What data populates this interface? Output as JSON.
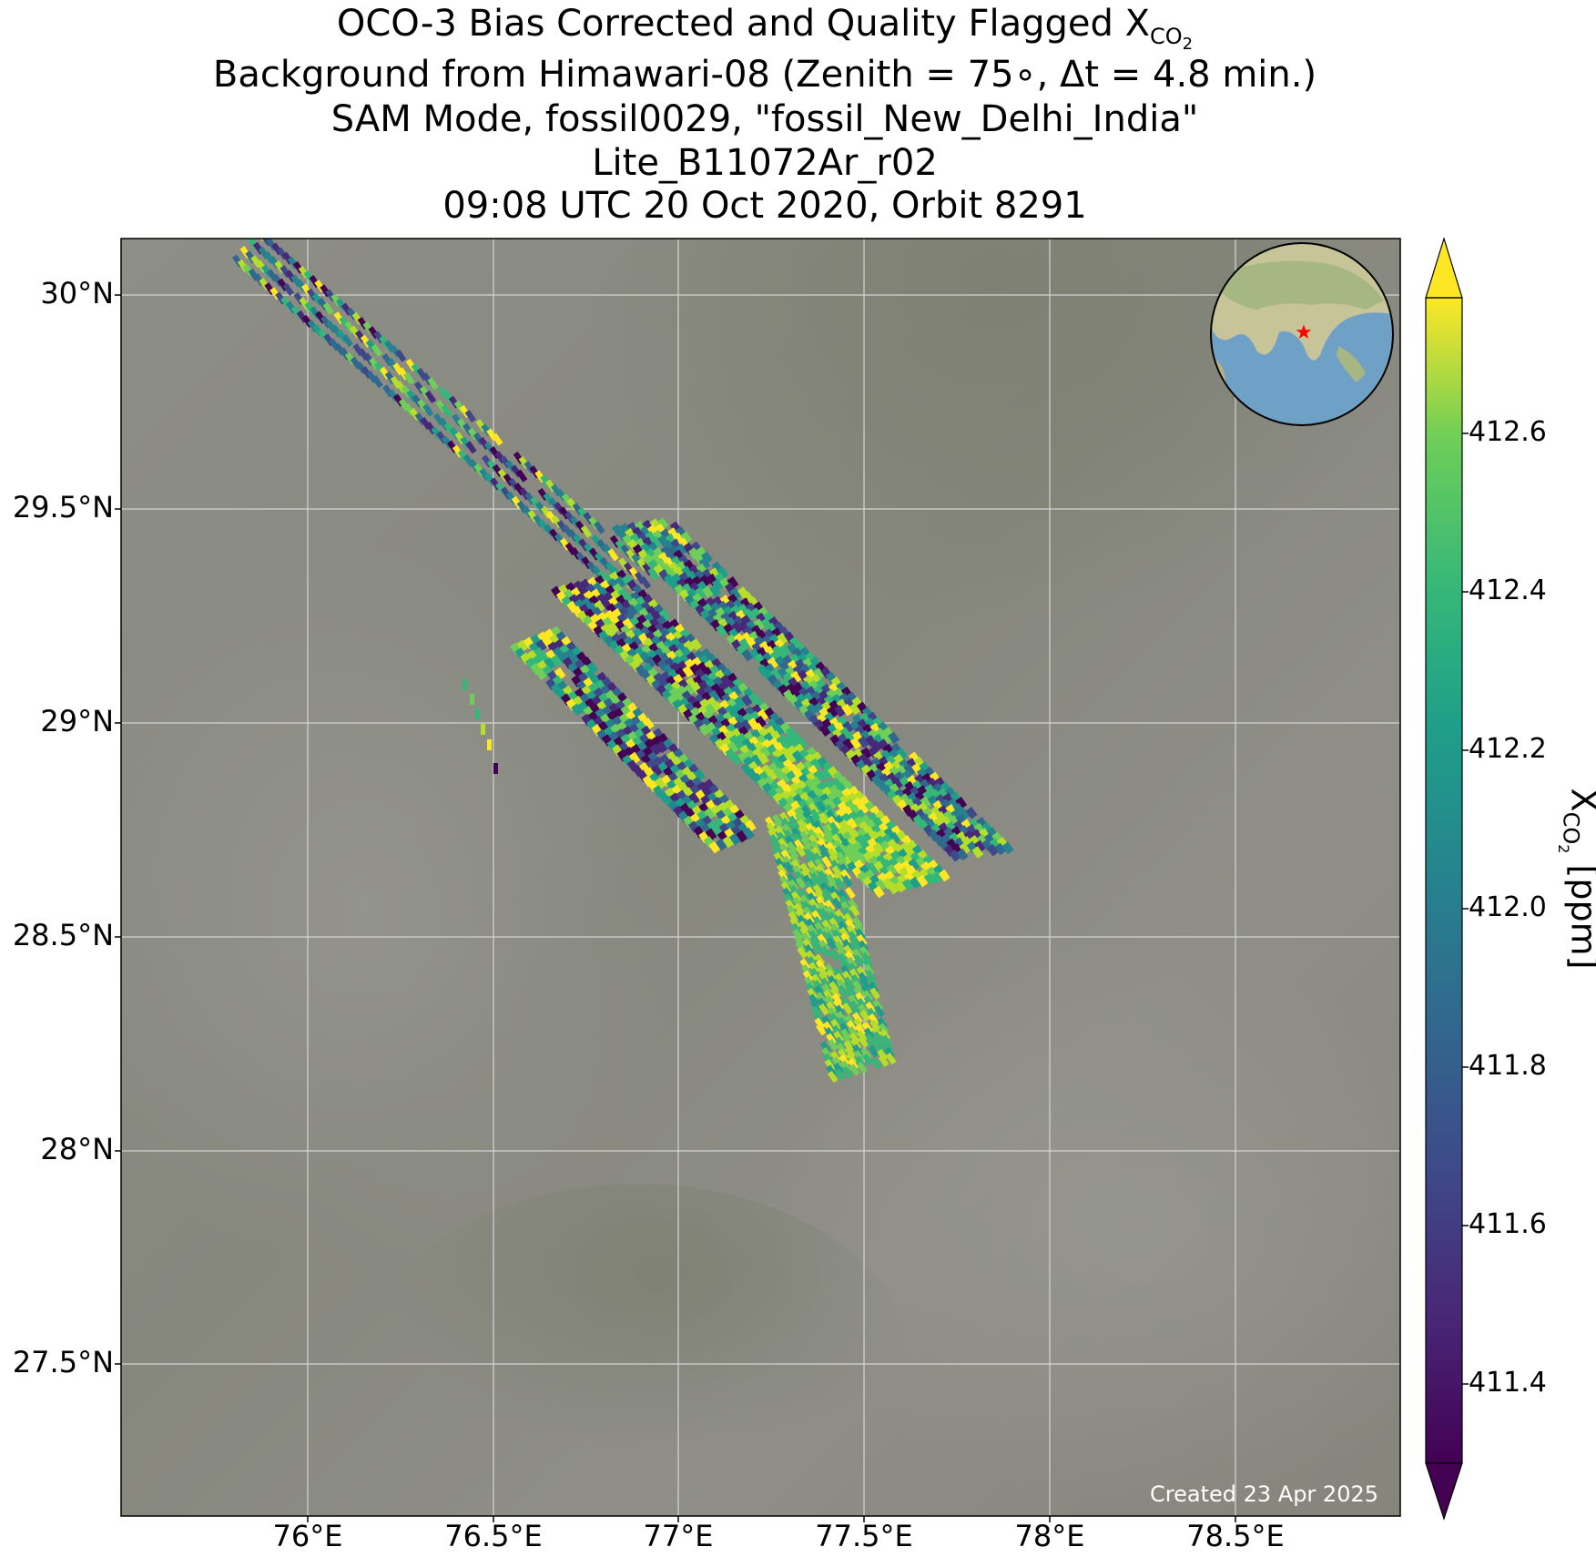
{
  "title": {
    "line1_main": "OCO-3 Bias Corrected and Quality Flagged X",
    "line1_sub": "CO",
    "line1_subsub": "2",
    "line2": "Background from Himawari-08 (Zenith = 75∘, Δt =  4.8 min.)",
    "line3": "SAM Mode, fossil0029, \"fossil_New_Delhi_India\"",
    "line4": "Lite_B11072Ar_r02",
    "line5": "09:08 UTC 20 Oct 2020, Orbit 8291"
  },
  "axes": {
    "lat_ticks": [
      "30°N",
      "29.5°N",
      "29°N",
      "28.5°N",
      "28°N",
      "27.5°N"
    ],
    "lon_ticks": [
      "76°E",
      "76.5°E",
      "77°E",
      "77.5°E",
      "78°E",
      "78.5°E"
    ]
  },
  "colorbar": {
    "label_main": "X",
    "label_sub": "CO",
    "label_subsub": "2",
    "label_units": " [ppm]",
    "ticks": [
      "412.6",
      "412.4",
      "412.2",
      "412.0",
      "411.8",
      "411.6",
      "411.4"
    ],
    "min": 411.3,
    "max": 412.75,
    "colormap": "viridis"
  },
  "inset": {
    "marker": "red star",
    "region": "Asia, centered near New Delhi"
  },
  "credit": "Created 23 Apr 2025",
  "colors": {
    "background_map": "#8a8a80",
    "grid": "#d0d0d0",
    "marker": "#ff0000"
  }
}
